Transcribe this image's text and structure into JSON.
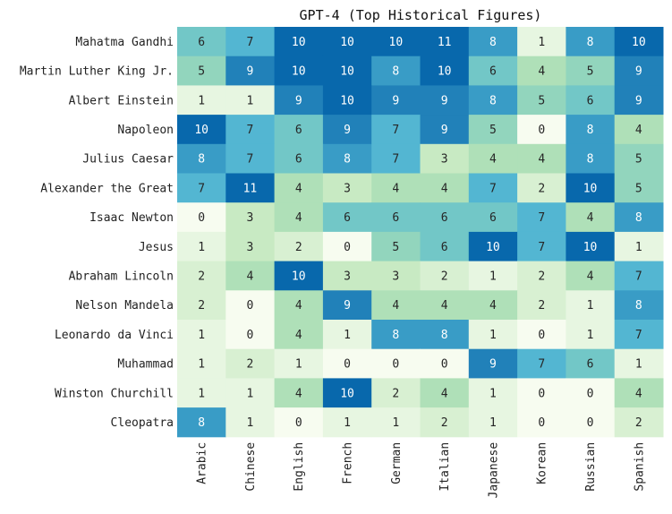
{
  "chart_data": {
    "type": "heatmap",
    "title": "GPT-4 (Top Historical Figures)",
    "xlabel": "",
    "ylabel": "",
    "columns": [
      "Arabic",
      "Chinese",
      "English",
      "French",
      "German",
      "Italian",
      "Japanese",
      "Korean",
      "Russian",
      "Spanish"
    ],
    "rows": [
      "Mahatma Gandhi",
      "Martin Luther King Jr.",
      "Albert Einstein",
      "Napoleon",
      "Julius Caesar",
      "Alexander the Great",
      "Isaac Newton",
      "Jesus",
      "Abraham Lincoln",
      "Nelson Mandela",
      "Leonardo da Vinci",
      "Muhammad",
      "Winston Churchill",
      "Cleopatra"
    ],
    "values": [
      [
        6,
        7,
        10,
        10,
        10,
        11,
        8,
        1,
        8,
        10
      ],
      [
        5,
        9,
        10,
        10,
        8,
        10,
        6,
        4,
        5,
        9
      ],
      [
        1,
        1,
        9,
        10,
        9,
        9,
        8,
        5,
        6,
        9
      ],
      [
        10,
        7,
        6,
        9,
        7,
        9,
        5,
        0,
        8,
        4
      ],
      [
        8,
        7,
        6,
        8,
        7,
        3,
        4,
        4,
        8,
        5
      ],
      [
        7,
        11,
        4,
        3,
        4,
        4,
        7,
        2,
        10,
        5
      ],
      [
        0,
        3,
        4,
        6,
        6,
        6,
        6,
        7,
        4,
        8
      ],
      [
        1,
        3,
        2,
        0,
        5,
        6,
        10,
        7,
        10,
        1
      ],
      [
        2,
        4,
        10,
        3,
        3,
        2,
        1,
        2,
        4,
        7
      ],
      [
        2,
        0,
        4,
        9,
        4,
        4,
        4,
        2,
        1,
        8
      ],
      [
        1,
        0,
        4,
        1,
        8,
        8,
        1,
        0,
        1,
        7
      ],
      [
        1,
        2,
        1,
        0,
        0,
        0,
        9,
        7,
        6,
        1
      ],
      [
        1,
        1,
        4,
        10,
        2,
        4,
        1,
        0,
        0,
        4
      ],
      [
        8,
        1,
        0,
        1,
        1,
        2,
        1,
        0,
        0,
        2
      ]
    ],
    "colormap": [
      "#f7fcf0",
      "#e0f3db",
      "#ccebc5",
      "#a8ddb5",
      "#7bccc4",
      "#4eb3d3",
      "#2b8cbe",
      "#0868ac"
    ],
    "vmin": 0,
    "vmax": 10,
    "grid": false,
    "legend": "none"
  }
}
